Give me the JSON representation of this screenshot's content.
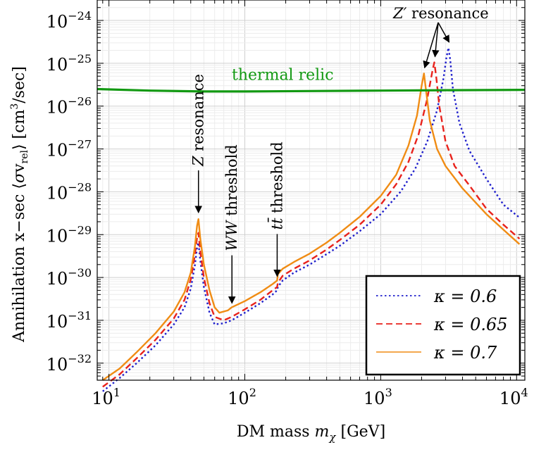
{
  "chart_data": {
    "type": "line",
    "xlabel": "DM mass m_χ [GeV]",
    "xlabel_parts": {
      "prefix": "DM mass ",
      "var": "m",
      "sub": "χ",
      "suffix": " [GeV]"
    },
    "ylabel": "Annihilation x−sec ⟨σv_rel⟩ [cm³/sec]",
    "ylabel_parts": {
      "prefix": "Annihilation x−sec ⟨",
      "sigma": "σ",
      "v": "v",
      "sub": "rel",
      "mid": "⟩ [cm",
      "sup": "3",
      "suffix": "/sec]"
    },
    "x_scale": "log",
    "y_scale": "log",
    "xlim": [
      8.2,
      11500
    ],
    "ylim": [
      4e-33,
      3e-24
    ],
    "grid": true,
    "legend_position": "bottom-right",
    "x_ticks": [
      {
        "value": 10,
        "base": "10",
        "exp": "1"
      },
      {
        "value": 100,
        "base": "10",
        "exp": "2"
      },
      {
        "value": 1000,
        "base": "10",
        "exp": "3"
      },
      {
        "value": 10000,
        "base": "10",
        "exp": "4"
      }
    ],
    "y_ticks": [
      {
        "value": 1e-32,
        "base": "10",
        "exp": "−32"
      },
      {
        "value": 1e-31,
        "base": "10",
        "exp": "−31"
      },
      {
        "value": 1e-30,
        "base": "10",
        "exp": "−30"
      },
      {
        "value": 1e-29,
        "base": "10",
        "exp": "−29"
      },
      {
        "value": 1e-28,
        "base": "10",
        "exp": "−28"
      },
      {
        "value": 1e-27,
        "base": "10",
        "exp": "−27"
      },
      {
        "value": 1e-26,
        "base": "10",
        "exp": "−26"
      },
      {
        "value": 1e-25,
        "base": "10",
        "exp": "−25"
      },
      {
        "value": 1e-24,
        "base": "10",
        "exp": "−24"
      }
    ],
    "series": [
      {
        "name": "κ = 0.6",
        "legend_label": "κ = 0.6",
        "color": "#1f1fcc",
        "dash": "dotted",
        "points": [
          [
            9,
            2.2e-33
          ],
          [
            12,
            4.5e-33
          ],
          [
            16,
            1e-32
          ],
          [
            22,
            2.6e-32
          ],
          [
            30,
            8e-32
          ],
          [
            36,
            2e-31
          ],
          [
            40,
            5.5e-31
          ],
          [
            43,
            2e-30
          ],
          [
            44.5,
            5e-30
          ],
          [
            45.6,
            6.5e-30
          ],
          [
            47,
            2.5e-30
          ],
          [
            50,
            6e-31
          ],
          [
            55,
            1.5e-31
          ],
          [
            60,
            8e-32
          ],
          [
            70,
            8.5e-32
          ],
          [
            80,
            1e-31
          ],
          [
            100,
            1.5e-31
          ],
          [
            130,
            2.5e-31
          ],
          [
            160,
            4e-31
          ],
          [
            173,
            5e-31
          ],
          [
            175,
            6e-31
          ],
          [
            190,
            8.5e-31
          ],
          [
            230,
            1.3e-30
          ],
          [
            300,
            2e-30
          ],
          [
            400,
            3.5e-30
          ],
          [
            500,
            5.5e-30
          ],
          [
            700,
            1.2e-29
          ],
          [
            1000,
            3e-29
          ],
          [
            1400,
            1e-28
          ],
          [
            1800,
            3.5e-28
          ],
          [
            2200,
            1.5e-27
          ],
          [
            2600,
            8e-27
          ],
          [
            2900,
            4.5e-26
          ],
          [
            3050,
            1.4e-25
          ],
          [
            3150,
            2.3e-25
          ],
          [
            3250,
            1.2e-25
          ],
          [
            3400,
            2.5e-26
          ],
          [
            3800,
            4e-27
          ],
          [
            4500,
            9e-28
          ],
          [
            6000,
            2e-28
          ],
          [
            8000,
            5e-29
          ],
          [
            10500,
            2.5e-29
          ]
        ]
      },
      {
        "name": "κ = 0.65",
        "legend_label": "κ = 0.65",
        "color": "#e8221c",
        "dash": "dashed",
        "points": [
          [
            9,
            2.8e-33
          ],
          [
            12,
            5.5e-33
          ],
          [
            16,
            1.3e-32
          ],
          [
            22,
            3.5e-32
          ],
          [
            30,
            1.1e-31
          ],
          [
            36,
            3e-31
          ],
          [
            40,
            9e-31
          ],
          [
            43,
            3.5e-30
          ],
          [
            44.5,
            8.5e-30
          ],
          [
            45.6,
            1.1e-29
          ],
          [
            47,
            4e-30
          ],
          [
            50,
            1e-30
          ],
          [
            55,
            2.5e-31
          ],
          [
            60,
            1.2e-31
          ],
          [
            70,
            1e-31
          ],
          [
            80,
            1.2e-31
          ],
          [
            100,
            1.8e-31
          ],
          [
            130,
            3e-31
          ],
          [
            160,
            5e-31
          ],
          [
            173,
            6e-31
          ],
          [
            175,
            7.5e-31
          ],
          [
            190,
            1.1e-30
          ],
          [
            230,
            1.6e-30
          ],
          [
            300,
            2.5e-30
          ],
          [
            400,
            4.5e-30
          ],
          [
            500,
            7.5e-30
          ],
          [
            700,
            1.7e-29
          ],
          [
            1000,
            5e-29
          ],
          [
            1300,
            1.5e-28
          ],
          [
            1600,
            5e-28
          ],
          [
            1900,
            2.2e-27
          ],
          [
            2200,
            1.5e-26
          ],
          [
            2400,
            6.5e-26
          ],
          [
            2480,
            1.05e-25
          ],
          [
            2560,
            5e-26
          ],
          [
            2700,
            1e-26
          ],
          [
            3000,
            1.5e-27
          ],
          [
            3500,
            4e-28
          ],
          [
            4500,
            1.4e-28
          ],
          [
            6000,
            4e-29
          ],
          [
            8000,
            1.7e-29
          ],
          [
            10500,
            8e-30
          ]
        ]
      },
      {
        "name": "κ = 0.7",
        "legend_label": "κ = 0.7",
        "color": "#f08c14",
        "dash": "solid",
        "points": [
          [
            9,
            4e-33
          ],
          [
            12,
            7.5e-33
          ],
          [
            16,
            1.8e-32
          ],
          [
            22,
            5e-32
          ],
          [
            30,
            1.6e-31
          ],
          [
            36,
            4.5e-31
          ],
          [
            40,
            1.3e-30
          ],
          [
            43,
            5.5e-30
          ],
          [
            44.5,
            1.6e-29
          ],
          [
            45.6,
            2.3e-29
          ],
          [
            47,
            8e-30
          ],
          [
            50,
            2e-30
          ],
          [
            55,
            5e-31
          ],
          [
            60,
            2e-31
          ],
          [
            65,
            1.5e-31
          ],
          [
            75,
            1.7e-31
          ],
          [
            80,
            2e-31
          ],
          [
            100,
            2.8e-31
          ],
          [
            130,
            4.5e-31
          ],
          [
            160,
            7e-31
          ],
          [
            173,
            8.5e-31
          ],
          [
            175,
            1.2e-30
          ],
          [
            190,
            1.6e-30
          ],
          [
            230,
            2.3e-30
          ],
          [
            300,
            3.6e-30
          ],
          [
            400,
            6.5e-30
          ],
          [
            500,
            1.1e-29
          ],
          [
            700,
            2.6e-29
          ],
          [
            1000,
            8e-29
          ],
          [
            1300,
            2.5e-28
          ],
          [
            1600,
            1.2e-27
          ],
          [
            1850,
            6e-27
          ],
          [
            2000,
            3e-26
          ],
          [
            2080,
            5.8e-26
          ],
          [
            2150,
            2.5e-26
          ],
          [
            2300,
            4.5e-27
          ],
          [
            2600,
            1e-27
          ],
          [
            3000,
            4e-28
          ],
          [
            4000,
            1.2e-28
          ],
          [
            6000,
            3e-29
          ],
          [
            8000,
            1.3e-29
          ],
          [
            10500,
            6e-30
          ]
        ]
      },
      {
        "name": "thermal relic",
        "color": "#129912",
        "dash": "solid",
        "points": [
          [
            8.2,
            2.5e-26
          ],
          [
            20,
            2.3e-26
          ],
          [
            50,
            2.2e-26
          ],
          [
            100,
            2.2e-26
          ],
          [
            300,
            2.25e-26
          ],
          [
            1000,
            2.3e-26
          ],
          [
            3000,
            2.35e-26
          ],
          [
            11500,
            2.4e-26
          ]
        ]
      }
    ],
    "annotations": {
      "thermal_relic": {
        "text": "thermal relic",
        "x": 190,
        "y": 3.8e-26
      },
      "z_resonance": {
        "prefix": "Z",
        "text": " resonance",
        "x": 45.6,
        "y": 2.6e-29
      },
      "ww_threshold": {
        "prefix": "WW",
        "text": " threshold",
        "x": 80.4,
        "y": 2e-31
      },
      "tt_threshold": {
        "prefix": "tt̄",
        "text": " threshold",
        "x": 173,
        "y": 8.5e-31
      },
      "zprime_resonance": {
        "prefix": "Z′",
        "text": " resonance",
        "tips": [
          [
            2080,
            5.8e-26
          ],
          [
            2480,
            1.05e-25
          ],
          [
            3150,
            2.3e-25
          ]
        ]
      }
    }
  }
}
